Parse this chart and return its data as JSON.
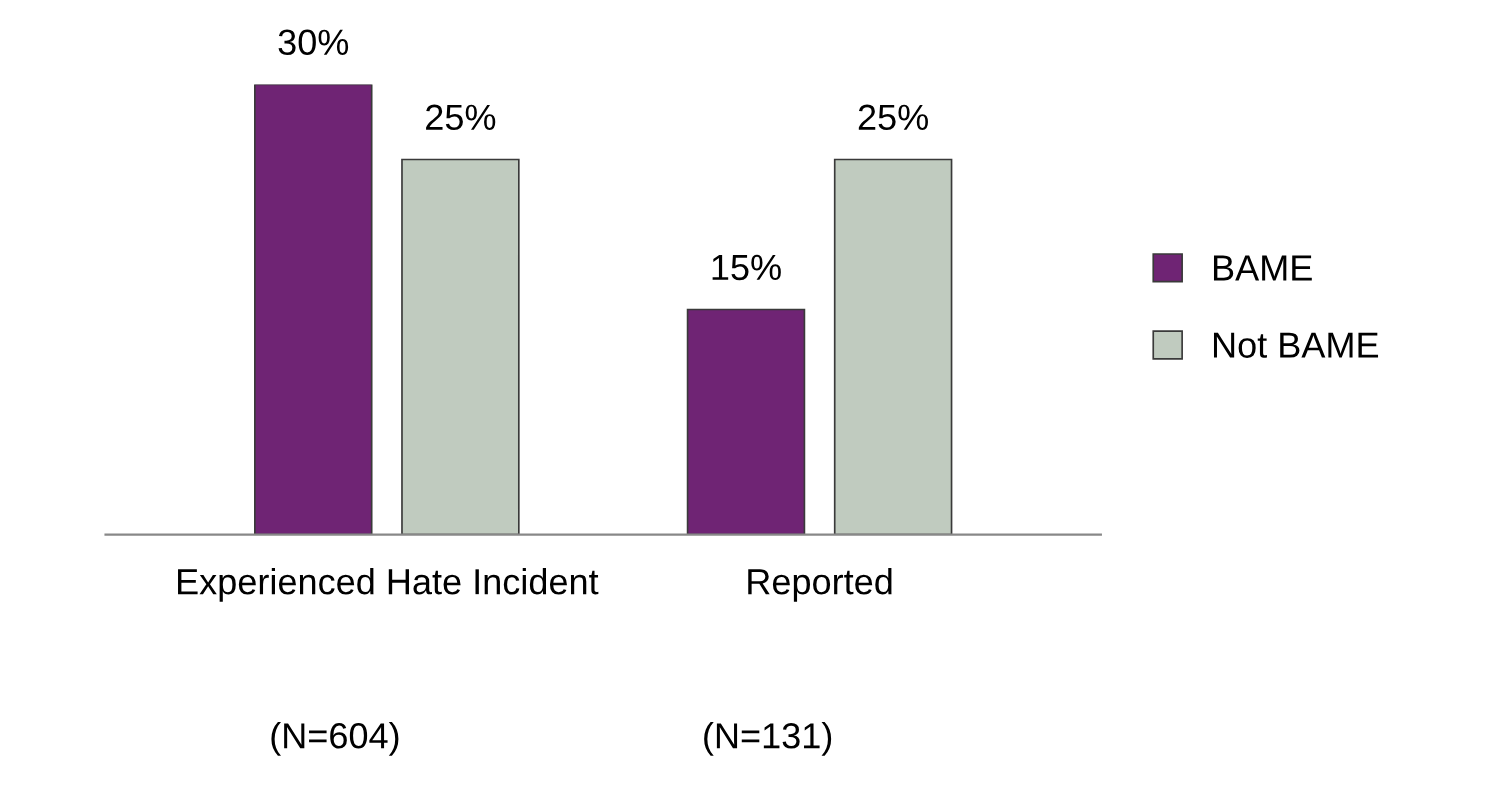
{
  "chart_data": {
    "type": "bar",
    "categories": [
      "Experienced Hate Incident",
      "Reported"
    ],
    "series": [
      {
        "name": "BAME",
        "color": "#6f2474",
        "values": [
          30,
          15
        ],
        "value_labels": [
          "30%",
          "15%"
        ]
      },
      {
        "name": "Not BAME",
        "color": "#c0cbbf",
        "values": [
          25,
          25
        ],
        "value_labels": [
          "25%",
          "25%"
        ]
      }
    ],
    "legend": "right",
    "tick_labels": "x",
    "annotations": [
      "(N=604)",
      "(N=131)"
    ]
  }
}
